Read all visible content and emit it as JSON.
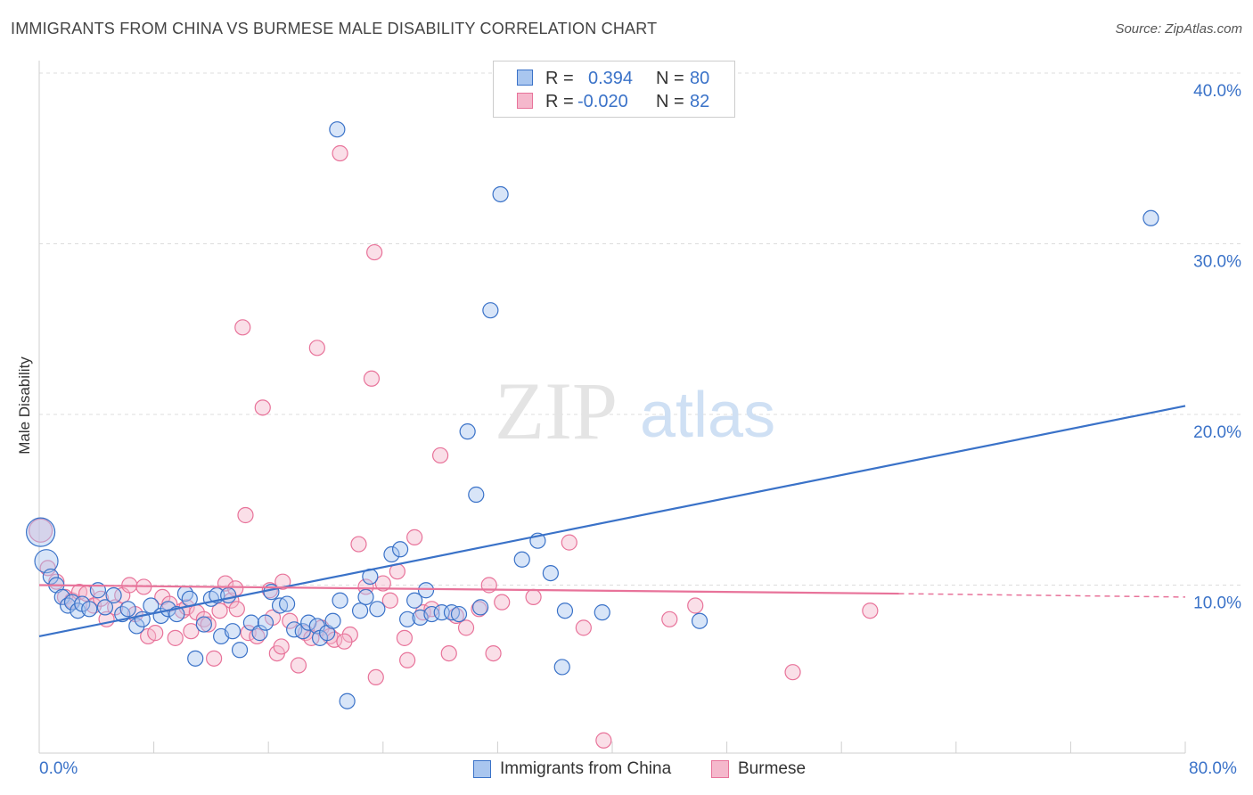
{
  "title": "IMMIGRANTS FROM CHINA VS BURMESE MALE DISABILITY CORRELATION CHART",
  "source": "Source: ZipAtlas.com",
  "watermark": {
    "zip": "ZIP",
    "atlas": "atlas"
  },
  "legend": {
    "rows": [
      {
        "r_label": "R =",
        "r_value": "0.394",
        "n_label": "N =",
        "n_value": "80"
      },
      {
        "r_label": "R =",
        "r_value": "-0.020",
        "n_label": "N =",
        "n_value": "82"
      }
    ]
  },
  "bottom_legend": {
    "china": "Immigrants from China",
    "burmese": "Burmese"
  },
  "colors": {
    "china": "#3a72c8",
    "china_fill": "#a9c6ef",
    "burmese": "#e8739a",
    "burmese_fill": "#f5b8cc",
    "grid": "#dddddd",
    "axis_text": "#3a72c8"
  },
  "chart_data": {
    "type": "scatter",
    "title": "IMMIGRANTS FROM CHINA VS BURMESE MALE DISABILITY CORRELATION CHART",
    "xlabel": "",
    "ylabel": "Male Disability",
    "xlim": [
      0,
      80
    ],
    "ylim": [
      0,
      40
    ],
    "x_tick_labels": [
      "0.0%",
      "80.0%"
    ],
    "y_ticks": [
      10,
      20,
      30,
      40
    ],
    "y_tick_labels": [
      "10.0%",
      "20.0%",
      "30.0%",
      "40.0%"
    ],
    "grid": true,
    "legend_position": "top-center",
    "series": [
      {
        "name": "Immigrants from China",
        "r": 0.394,
        "n": 80,
        "trend": {
          "x": [
            0,
            80
          ],
          "y": [
            7.0,
            20.5
          ]
        },
        "points": [
          [
            0.1,
            13.1,
            3
          ],
          [
            0.5,
            11.4,
            2
          ],
          [
            0.8,
            10.5,
            1
          ],
          [
            1.2,
            10.0,
            1
          ],
          [
            1.6,
            9.3,
            1
          ],
          [
            2.0,
            8.8,
            1
          ],
          [
            2.3,
            9.0,
            1
          ],
          [
            2.7,
            8.5,
            1
          ],
          [
            3.0,
            8.9,
            1
          ],
          [
            3.5,
            8.6,
            1
          ],
          [
            4.1,
            9.7,
            1
          ],
          [
            4.6,
            8.7,
            1
          ],
          [
            5.2,
            9.4,
            1
          ],
          [
            5.8,
            8.3,
            1
          ],
          [
            6.2,
            8.6,
            1
          ],
          [
            6.8,
            7.6,
            1
          ],
          [
            7.2,
            8.0,
            1
          ],
          [
            7.8,
            8.8,
            1
          ],
          [
            8.5,
            8.2,
            1
          ],
          [
            9.0,
            8.6,
            1
          ],
          [
            9.6,
            8.3,
            1
          ],
          [
            10.2,
            9.5,
            1
          ],
          [
            10.5,
            9.2,
            1
          ],
          [
            10.9,
            5.7,
            1
          ],
          [
            11.5,
            7.7,
            1
          ],
          [
            12.0,
            9.2,
            1
          ],
          [
            12.4,
            9.4,
            1
          ],
          [
            12.7,
            7.0,
            1
          ],
          [
            13.2,
            9.4,
            1
          ],
          [
            13.5,
            7.3,
            1
          ],
          [
            14.0,
            6.2,
            1
          ],
          [
            14.8,
            7.8,
            1
          ],
          [
            15.4,
            7.2,
            1
          ],
          [
            15.8,
            7.8,
            1
          ],
          [
            16.2,
            9.6,
            1
          ],
          [
            16.8,
            8.8,
            1
          ],
          [
            17.3,
            8.9,
            1
          ],
          [
            17.8,
            7.4,
            1
          ],
          [
            18.4,
            7.3,
            1
          ],
          [
            18.8,
            7.8,
            1
          ],
          [
            19.4,
            7.6,
            1
          ],
          [
            19.6,
            6.9,
            1
          ],
          [
            20.1,
            7.2,
            1
          ],
          [
            20.5,
            7.9,
            1
          ],
          [
            21.0,
            9.1,
            1
          ],
          [
            20.8,
            36.7,
            1
          ],
          [
            21.5,
            3.2,
            1
          ],
          [
            22.4,
            8.5,
            1
          ],
          [
            22.8,
            9.3,
            1
          ],
          [
            23.1,
            10.5,
            1
          ],
          [
            23.6,
            8.6,
            1
          ],
          [
            24.6,
            11.8,
            1
          ],
          [
            25.2,
            12.1,
            1
          ],
          [
            25.7,
            8.0,
            1
          ],
          [
            26.2,
            9.1,
            1
          ],
          [
            26.6,
            8.1,
            1
          ],
          [
            27.0,
            9.7,
            1
          ],
          [
            27.4,
            8.3,
            1
          ],
          [
            28.1,
            8.4,
            1
          ],
          [
            28.8,
            8.4,
            1
          ],
          [
            29.3,
            8.3,
            1
          ],
          [
            29.9,
            19.0,
            1
          ],
          [
            30.5,
            15.3,
            1
          ],
          [
            30.8,
            8.7,
            1
          ],
          [
            31.5,
            26.1,
            1
          ],
          [
            32.2,
            32.9,
            1
          ],
          [
            33.7,
            11.5,
            1
          ],
          [
            34.8,
            12.6,
            1
          ],
          [
            35.7,
            10.7,
            1
          ],
          [
            36.5,
            5.2,
            1
          ],
          [
            36.7,
            8.5,
            1
          ],
          [
            39.3,
            8.4,
            1
          ],
          [
            46.1,
            7.9,
            1
          ],
          [
            77.6,
            31.5,
            1
          ]
        ]
      },
      {
        "name": "Burmese",
        "r": -0.02,
        "n": 82,
        "trend": {
          "x": [
            0,
            60
          ],
          "y": [
            10.0,
            9.5
          ]
        },
        "trend_dashed": {
          "x": [
            60,
            80
          ],
          "y": [
            9.5,
            9.3
          ]
        },
        "points": [
          [
            0.1,
            13.2,
            2
          ],
          [
            0.6,
            11.0,
            1
          ],
          [
            1.2,
            10.2,
            1
          ],
          [
            1.8,
            9.3,
            1
          ],
          [
            2.3,
            9.1,
            1
          ],
          [
            2.8,
            9.6,
            1
          ],
          [
            3.3,
            9.5,
            1
          ],
          [
            3.8,
            8.8,
            1
          ],
          [
            4.3,
            9.2,
            1
          ],
          [
            4.7,
            8.0,
            1
          ],
          [
            5.3,
            8.7,
            1
          ],
          [
            5.8,
            9.4,
            1
          ],
          [
            6.3,
            10.0,
            1
          ],
          [
            6.7,
            8.3,
            1
          ],
          [
            7.3,
            9.9,
            1
          ],
          [
            7.6,
            7.0,
            1
          ],
          [
            8.1,
            7.2,
            1
          ],
          [
            8.6,
            9.3,
            1
          ],
          [
            9.1,
            8.9,
            1
          ],
          [
            9.5,
            6.9,
            1
          ],
          [
            10.0,
            8.5,
            1
          ],
          [
            10.3,
            8.7,
            1
          ],
          [
            10.6,
            7.3,
            1
          ],
          [
            11.0,
            8.4,
            1
          ],
          [
            11.5,
            8.0,
            1
          ],
          [
            11.8,
            7.7,
            1
          ],
          [
            12.2,
            5.7,
            1
          ],
          [
            12.6,
            8.5,
            1
          ],
          [
            13.0,
            10.1,
            1
          ],
          [
            13.4,
            9.1,
            1
          ],
          [
            13.8,
            8.6,
            1
          ],
          [
            14.2,
            25.1,
            1
          ],
          [
            14.6,
            7.2,
            1
          ],
          [
            14.4,
            14.1,
            1
          ],
          [
            15.2,
            7.0,
            1
          ],
          [
            15.6,
            20.4,
            1
          ],
          [
            16.1,
            9.7,
            1
          ],
          [
            16.3,
            8.1,
            1
          ],
          [
            16.6,
            6.0,
            1
          ],
          [
            17.0,
            10.2,
            1
          ],
          [
            17.5,
            7.9,
            1
          ],
          [
            18.1,
            5.3,
            1
          ],
          [
            18.6,
            7.2,
            1
          ],
          [
            19.0,
            6.9,
            1
          ],
          [
            19.4,
            23.9,
            1
          ],
          [
            19.7,
            7.5,
            1
          ],
          [
            20.3,
            7.0,
            1
          ],
          [
            20.6,
            6.8,
            1
          ],
          [
            21.0,
            35.3,
            1
          ],
          [
            21.7,
            7.1,
            1
          ],
          [
            22.3,
            12.4,
            1
          ],
          [
            22.8,
            9.9,
            1
          ],
          [
            23.4,
            29.5,
            1
          ],
          [
            24.0,
            10.1,
            1
          ],
          [
            23.2,
            22.1,
            1
          ],
          [
            24.5,
            9.1,
            1
          ],
          [
            25.0,
            10.8,
            1
          ],
          [
            25.5,
            6.9,
            1
          ],
          [
            25.7,
            5.6,
            1
          ],
          [
            26.2,
            12.8,
            1
          ],
          [
            26.8,
            8.4,
            1
          ],
          [
            27.4,
            8.6,
            1
          ],
          [
            28.0,
            17.6,
            1
          ],
          [
            28.6,
            6.0,
            1
          ],
          [
            29.1,
            8.2,
            1
          ],
          [
            29.8,
            7.5,
            1
          ],
          [
            30.7,
            8.6,
            1
          ],
          [
            31.4,
            10.0,
            1
          ],
          [
            31.7,
            6.0,
            1
          ],
          [
            32.3,
            9.0,
            1
          ],
          [
            34.5,
            9.3,
            1
          ],
          [
            37.0,
            12.5,
            1
          ],
          [
            38.0,
            7.5,
            1
          ],
          [
            39.4,
            0.9,
            1
          ],
          [
            44.0,
            8.0,
            1
          ],
          [
            45.8,
            8.8,
            1
          ],
          [
            52.6,
            4.9,
            1
          ],
          [
            58.0,
            8.5,
            1
          ],
          [
            23.5,
            4.6,
            1
          ],
          [
            21.3,
            6.7,
            1
          ],
          [
            13.7,
            9.8,
            1
          ],
          [
            16.9,
            6.4,
            1
          ]
        ]
      }
    ]
  }
}
